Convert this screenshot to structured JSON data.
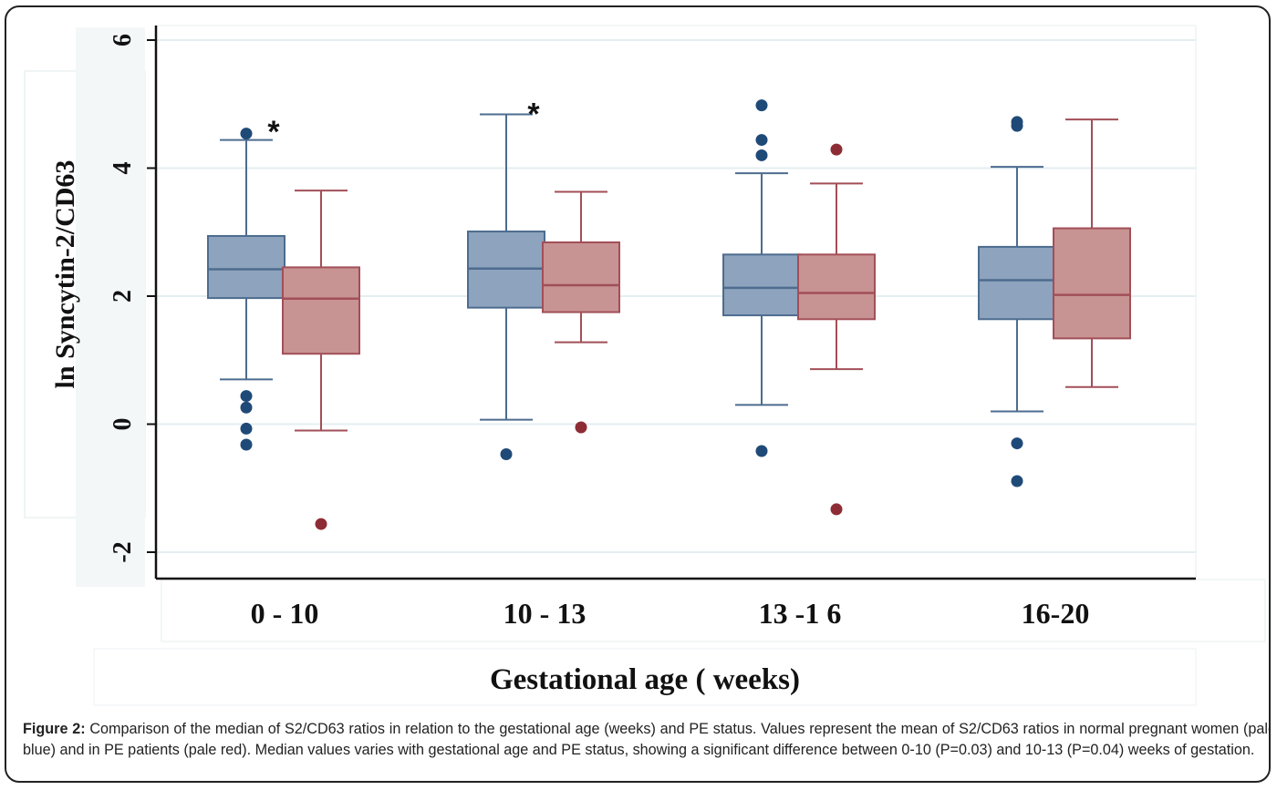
{
  "chart_data": {
    "type": "boxplot",
    "ylabel": "ln Syncytin-2/CD63",
    "xlabel": "Gestational age ( weeks)",
    "ylim": [
      -2.3,
      6.2
    ],
    "yticks": [
      -2,
      0,
      2,
      4,
      6
    ],
    "grid": true,
    "categories": [
      "0 - 10",
      "10 - 13",
      "13 -1 6",
      "16-20"
    ],
    "series": [
      {
        "color": "#8ea3bd",
        "edge": "#4d6c8f",
        "outlier_color": "#1f4a78",
        "boxes": [
          {
            "whisker_low": 0.7,
            "q1": 1.97,
            "median": 2.42,
            "q3": 2.94,
            "whisker_high": 4.44,
            "outliers": [
              4.54,
              0.44,
              0.26,
              -0.07,
              -0.32
            ]
          },
          {
            "whisker_low": 0.07,
            "q1": 1.82,
            "median": 2.43,
            "q3": 3.01,
            "whisker_high": 4.84,
            "outliers": [
              -0.47
            ]
          },
          {
            "whisker_low": 0.3,
            "q1": 1.7,
            "median": 2.13,
            "q3": 2.65,
            "whisker_high": 3.92,
            "outliers": [
              4.98,
              4.44,
              4.2,
              -0.42
            ]
          },
          {
            "whisker_low": 0.2,
            "q1": 1.64,
            "median": 2.25,
            "q3": 2.77,
            "whisker_high": 4.02,
            "outliers": [
              4.72,
              4.66,
              -0.3,
              -0.89
            ]
          }
        ]
      },
      {
        "color": "#c89393",
        "edge": "#a24f58",
        "outlier_color": "#8e2c35",
        "boxes": [
          {
            "whisker_low": -0.1,
            "q1": 1.1,
            "median": 1.96,
            "q3": 2.45,
            "whisker_high": 3.65,
            "outliers": [
              -1.56
            ]
          },
          {
            "whisker_low": 1.28,
            "q1": 1.75,
            "median": 2.17,
            "q3": 2.84,
            "whisker_high": 3.63,
            "outliers": [
              -0.05
            ]
          },
          {
            "whisker_low": 0.86,
            "q1": 1.64,
            "median": 2.05,
            "q3": 2.65,
            "whisker_high": 3.76,
            "outliers": [
              4.29,
              -1.33
            ]
          },
          {
            "whisker_low": 0.58,
            "q1": 1.34,
            "median": 2.02,
            "q3": 3.06,
            "whisker_high": 4.76,
            "outliers": []
          }
        ]
      }
    ],
    "annotations": [
      {
        "text": "*",
        "category_index": 0,
        "y": 4.72
      },
      {
        "text": "*",
        "category_index": 1,
        "y": 5.0
      }
    ]
  },
  "caption": {
    "label": "Figure 2:",
    "text": " Comparison of the median of S2/CD63 ratios in relation to the gestational age (weeks) and PE status. Values represent the mean of S2/CD63 ratios in normal pregnant women (pale blue) and in PE patients (pale red). Median values varies with gestational age and PE status, showing a significant difference between 0-10 (P=0.03) and 10-13 (P=0.04) weeks of gestation."
  }
}
